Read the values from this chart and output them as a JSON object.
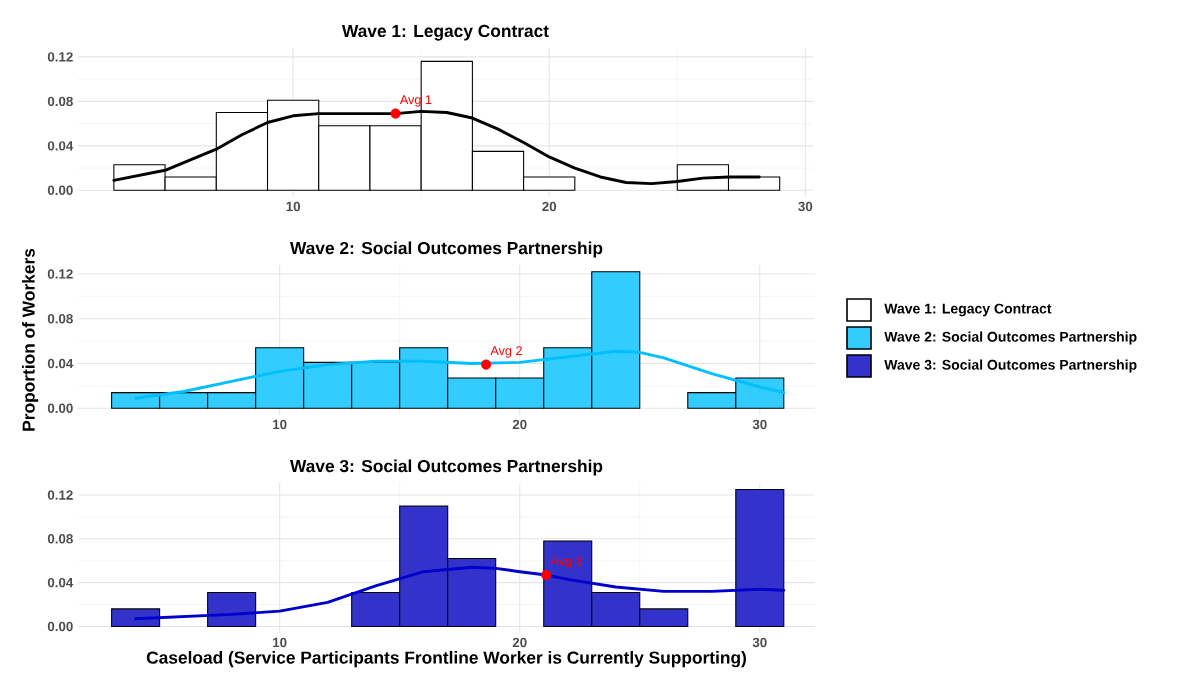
{
  "chart_data": [
    {
      "type": "histogram",
      "title": "Wave 1: Legacy Contract",
      "xlim": [
        1.6,
        30.3
      ],
      "ylim": [
        -0.006,
        0.128
      ],
      "xticks": [
        10,
        20,
        30
      ],
      "yticks": [
        {
          "value": 0,
          "label": "0.00"
        },
        {
          "value": 0.04,
          "label": "0.04"
        },
        {
          "value": 0.08,
          "label": "0.08"
        },
        {
          "value": 0.12,
          "label": "0.12"
        }
      ],
      "grid": true,
      "legend": "right",
      "annotations": [
        {
          "text": "Avg 1",
          "x": 14.0,
          "y": 0.069
        }
      ],
      "series": [
        {
          "name": "Wave 1: Legacy Contract",
          "color": "#ffffff",
          "bins": [
            3,
            5,
            7,
            9,
            11,
            13,
            15,
            17,
            19,
            21,
            23,
            25,
            27,
            29
          ],
          "values": [
            0.023,
            0.012,
            0.07,
            0.081,
            0.058,
            0.058,
            0.116,
            0.035,
            0.012,
            0,
            0,
            0.023,
            0.012
          ]
        },
        {
          "type": "line",
          "color": "#000000",
          "x": [
            3,
            5,
            7,
            8,
            9,
            10,
            11,
            12,
            13,
            14,
            15,
            16,
            17,
            18,
            19,
            20,
            21,
            22,
            23,
            24,
            25,
            26,
            27,
            28.2
          ],
          "values": [
            0.009,
            0.018,
            0.037,
            0.05,
            0.061,
            0.067,
            0.069,
            0.069,
            0.069,
            0.069,
            0.071,
            0.07,
            0.065,
            0.055,
            0.043,
            0.03,
            0.02,
            0.012,
            0.007,
            0.006,
            0.008,
            0.011,
            0.012,
            0.012
          ]
        },
        {
          "type": "scatter",
          "color": "#ff0000",
          "x": [
            14.0
          ],
          "values": [
            0.069
          ]
        }
      ]
    },
    {
      "type": "histogram",
      "title": "Wave 2: Social Outcomes Partnership",
      "ylabel": "Proportion of Workers",
      "xlim": [
        1.6,
        32.3
      ],
      "ylim": [
        -0.006,
        0.128
      ],
      "xticks": [
        10,
        20,
        30
      ],
      "yticks": [
        {
          "value": 0,
          "label": "0.00"
        },
        {
          "value": 0.04,
          "label": "0.04"
        },
        {
          "value": 0.08,
          "label": "0.08"
        },
        {
          "value": 0.12,
          "label": "0.12"
        }
      ],
      "grid": true,
      "legend": "right",
      "annotations": [
        {
          "text": "Avg 2",
          "x": 18.6,
          "y": 0.039
        }
      ],
      "series": [
        {
          "name": "Wave 2: Social Outcomes Partnership",
          "color": "#33ccff",
          "bins": [
            3,
            5,
            7,
            9,
            11,
            13,
            15,
            17,
            19,
            21,
            23,
            25,
            27,
            29,
            31
          ],
          "values": [
            0.014,
            0.014,
            0.014,
            0.054,
            0.041,
            0.041,
            0.054,
            0.027,
            0.027,
            0.054,
            0.122,
            0,
            0.014,
            0.027
          ]
        },
        {
          "type": "line",
          "color": "#00bfff",
          "x": [
            4,
            6,
            8,
            10,
            12,
            14,
            16,
            18,
            20,
            22,
            24,
            25,
            26,
            28,
            30,
            31
          ],
          "values": [
            0.009,
            0.015,
            0.024,
            0.033,
            0.039,
            0.042,
            0.042,
            0.04,
            0.041,
            0.046,
            0.051,
            0.05,
            0.045,
            0.031,
            0.019,
            0.014
          ]
        },
        {
          "type": "scatter",
          "color": "#ff0000",
          "x": [
            18.6
          ],
          "values": [
            0.039
          ]
        }
      ]
    },
    {
      "type": "histogram",
      "title": "Wave 3: Social Outcomes Partnership",
      "xlabel": "Caseload (Service Participants Frontline Worker is Currently Supporting)",
      "xlim": [
        1.6,
        32.3
      ],
      "ylim": [
        -0.006,
        0.131
      ],
      "xticks": [
        10,
        20,
        30
      ],
      "yticks": [
        {
          "value": 0,
          "label": "0.00"
        },
        {
          "value": 0.04,
          "label": "0.04"
        },
        {
          "value": 0.08,
          "label": "0.08"
        },
        {
          "value": 0.12,
          "label": "0.12"
        }
      ],
      "grid": true,
      "legend": "right",
      "annotations": [
        {
          "text": "Avg 3",
          "x": 21.1,
          "y": 0.047
        }
      ],
      "series": [
        {
          "name": "Wave 3: Social Outcomes Partnership",
          "color": "#3333cc",
          "bins": [
            3,
            5,
            7,
            9,
            11,
            13,
            15,
            17,
            19,
            21,
            23,
            25,
            27,
            29,
            31
          ],
          "values": [
            0.016,
            0,
            0.031,
            0,
            0,
            0.031,
            0.11,
            0.062,
            0,
            0.078,
            0.031,
            0.016,
            0,
            0.125
          ]
        },
        {
          "type": "line",
          "color": "#0000cd",
          "x": [
            4,
            6,
            8,
            10,
            12,
            14,
            16,
            18,
            19,
            20,
            21.1,
            22,
            24,
            26,
            28,
            30,
            31
          ],
          "values": [
            0.007,
            0.009,
            0.011,
            0.014,
            0.022,
            0.037,
            0.05,
            0.054,
            0.053,
            0.05,
            0.047,
            0.043,
            0.036,
            0.032,
            0.032,
            0.034,
            0.033
          ]
        },
        {
          "type": "scatter",
          "color": "#ff0000",
          "x": [
            21.1
          ],
          "values": [
            0.047
          ]
        }
      ]
    }
  ]
}
